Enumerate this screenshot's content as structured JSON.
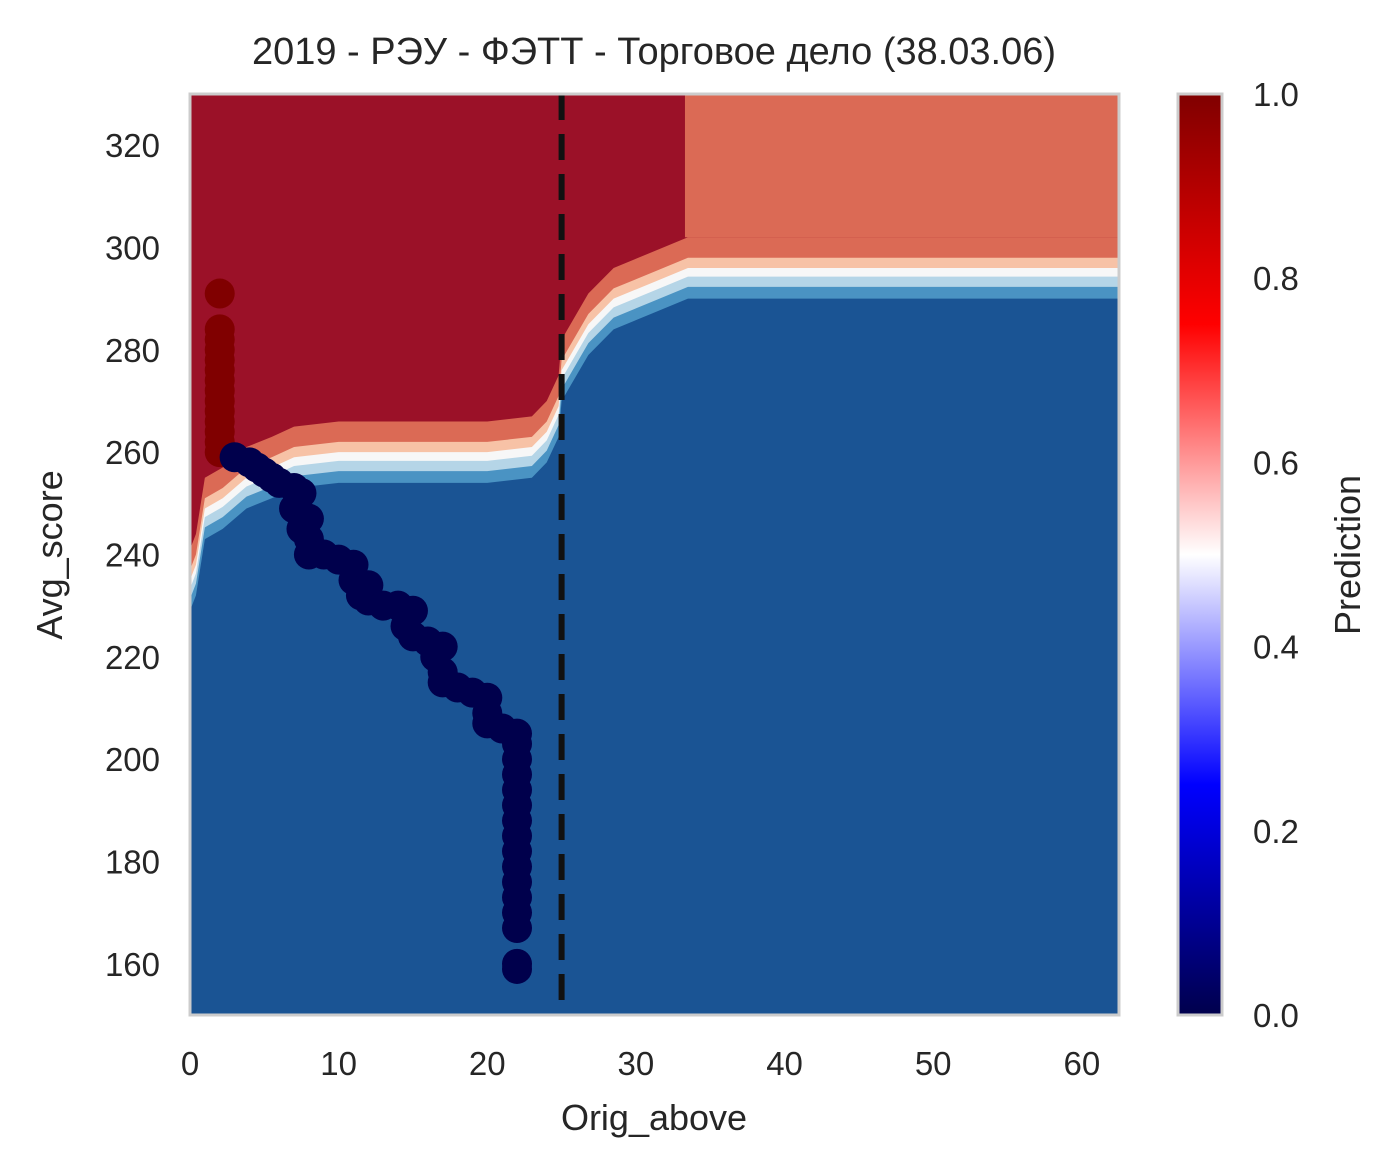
{
  "chart_data": {
    "type": "heatmap",
    "title": "2019 - РЭУ - ФЭТТ - Торговое дело (38.03.06)",
    "xlabel": "Orig_above",
    "ylabel": "Avg_score",
    "xlim": [
      0,
      62.5
    ],
    "ylim": [
      150,
      330
    ],
    "x_ticks": [
      "0",
      "10",
      "20",
      "30",
      "40",
      "50",
      "60"
    ],
    "y_ticks": [
      "160",
      "180",
      "200",
      "220",
      "240",
      "260",
      "280",
      "300",
      "320"
    ],
    "grid": false,
    "colorbar": {
      "label": "Prediction",
      "range": [
        0,
        1
      ],
      "ticks": [
        "0.0",
        "0.2",
        "0.4",
        "0.6",
        "0.8",
        "1.0"
      ],
      "colormap": "seismic"
    },
    "contour_levels": [
      {
        "level": "0.0-0.1",
        "color": "#1a5494"
      },
      {
        "level": "0.1-0.2",
        "color": "#4a93c3"
      },
      {
        "level": "0.2-0.3",
        "color": "#b5d5e7"
      },
      {
        "level": "0.3-0.4",
        "color": "#f7f7f7"
      },
      {
        "level": "0.4-0.5",
        "color": "#f7c2a6"
      },
      {
        "level": "0.5-0.6",
        "color": "#db6a55"
      },
      {
        "level": "0.6-1.0",
        "color": "#9b1128"
      }
    ],
    "decision_boundary": {
      "left_section": [
        [
          0,
          229
        ],
        [
          0.4,
          232
        ],
        [
          1,
          243
        ],
        [
          2.2,
          245
        ],
        [
          3.8,
          249
        ],
        [
          5.5,
          251
        ],
        [
          7,
          253
        ],
        [
          10,
          254
        ],
        [
          15,
          254
        ],
        [
          20,
          254
        ],
        [
          23,
          255
        ],
        [
          24,
          258
        ],
        [
          24.8,
          263
        ],
        [
          25,
          270
        ]
      ],
      "right_section": [
        [
          25,
          270
        ],
        [
          25.6,
          273
        ],
        [
          26.8,
          279
        ],
        [
          28.5,
          284
        ],
        [
          31,
          287
        ],
        [
          33.5,
          290
        ],
        [
          40,
          290
        ],
        [
          50,
          290
        ],
        [
          62.5,
          290
        ]
      ]
    },
    "top_region_boundary": {
      "x_split": 33.3,
      "right_upper_from_y": 302
    },
    "threshold_line": {
      "x": 25,
      "style": "dashed",
      "color": "#111111"
    },
    "scatter": {
      "red_points": {
        "color": "#800000",
        "points": [
          [
            2,
            291
          ],
          [
            2,
            284
          ],
          [
            2,
            282
          ],
          [
            2,
            280
          ],
          [
            2,
            278
          ],
          [
            2,
            276
          ],
          [
            2,
            274
          ],
          [
            2,
            272
          ],
          [
            2,
            270
          ],
          [
            2,
            268
          ],
          [
            2,
            266
          ],
          [
            2,
            264
          ],
          [
            2,
            262
          ],
          [
            2,
            260
          ]
        ]
      },
      "blue_points": {
        "color": "#00004c",
        "points": [
          [
            3,
            259
          ],
          [
            4,
            258
          ],
          [
            4.5,
            257
          ],
          [
            5,
            256
          ],
          [
            5.5,
            255
          ],
          [
            6,
            254
          ],
          [
            7,
            253
          ],
          [
            7.5,
            252
          ],
          [
            7,
            249
          ],
          [
            8,
            247
          ],
          [
            7.5,
            245
          ],
          [
            8,
            243
          ],
          [
            8,
            240
          ],
          [
            9,
            240
          ],
          [
            10,
            239
          ],
          [
            11,
            238
          ],
          [
            11,
            235
          ],
          [
            12,
            234
          ],
          [
            11.5,
            232
          ],
          [
            12,
            231
          ],
          [
            13,
            230
          ],
          [
            14,
            230
          ],
          [
            15,
            229
          ],
          [
            14.5,
            226
          ],
          [
            15,
            224
          ],
          [
            16,
            223
          ],
          [
            17,
            222
          ],
          [
            16.5,
            220
          ],
          [
            17,
            217
          ],
          [
            17,
            215
          ],
          [
            18,
            214
          ],
          [
            19,
            213
          ],
          [
            20,
            212
          ],
          [
            20,
            209
          ],
          [
            20,
            207
          ],
          [
            21,
            206
          ],
          [
            22,
            205
          ],
          [
            22,
            203
          ],
          [
            22,
            200
          ],
          [
            22,
            197
          ],
          [
            22,
            194
          ],
          [
            22,
            191
          ],
          [
            22,
            188
          ],
          [
            22,
            185
          ],
          [
            22,
            182
          ],
          [
            22,
            179
          ],
          [
            22,
            176
          ],
          [
            22,
            173
          ],
          [
            22,
            170
          ],
          [
            22,
            167
          ],
          [
            22,
            160
          ],
          [
            22,
            159
          ]
        ]
      }
    }
  }
}
